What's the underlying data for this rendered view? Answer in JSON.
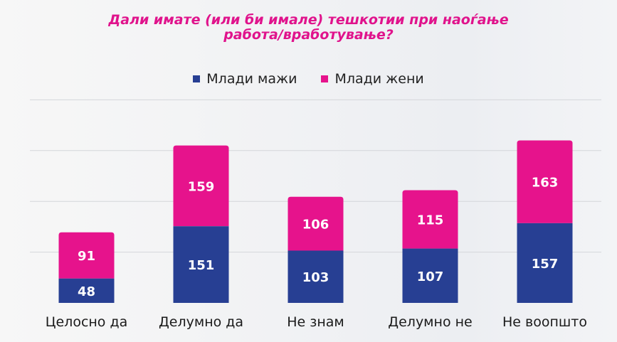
{
  "chart_data": {
    "type": "bar",
    "stacked": true,
    "title_lines": [
      "Дали имате (или би имале) тешкотии при наоѓање",
      "работа/вработување?"
    ],
    "categories": [
      "Целосно да",
      "Делумно да",
      "Не знам",
      "Делумно не",
      "Не воопшто"
    ],
    "series": [
      {
        "name": "Млади мажи",
        "values": [
          48,
          151,
          103,
          107,
          157
        ],
        "color": "#273f93"
      },
      {
        "name": "Млади жени",
        "values": [
          91,
          159,
          106,
          115,
          163
        ],
        "color": "#e6138c"
      }
    ],
    "ylim": [
      0,
      400
    ],
    "gridlines": [
      100,
      200,
      300,
      400
    ],
    "grid": true,
    "legend_position": "top-center"
  }
}
